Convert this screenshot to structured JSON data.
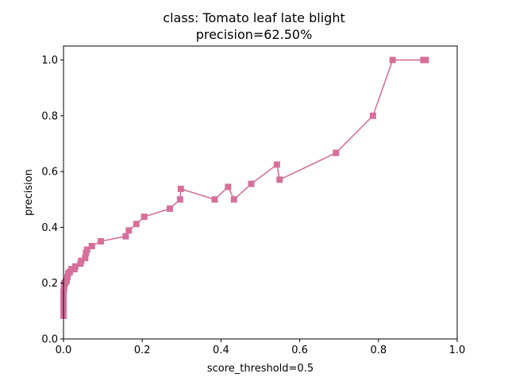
{
  "chart_data": {
    "type": "line",
    "title": "class: Tomato leaf late blight",
    "subtitle": "precision=62.50%",
    "xlabel": "score_threshold=0.5",
    "ylabel": "precision",
    "xlim": [
      0.0,
      1.0
    ],
    "ylim": [
      0.0,
      1.05
    ],
    "xticks": [
      "0.0",
      "0.2",
      "0.4",
      "0.6",
      "0.8",
      "1.0"
    ],
    "yticks": [
      "0.0",
      "0.2",
      "0.4",
      "0.6",
      "0.8",
      "1.0"
    ],
    "grid": false,
    "marker": "square",
    "color": "#d6709b",
    "series": [
      {
        "x": [
          0.0,
          0.0,
          0.0,
          0.0,
          0.0,
          0.0,
          0.0,
          0.0,
          0.0,
          0.0,
          0.0,
          0.001,
          0.001,
          0.002,
          0.002,
          0.004,
          0.006,
          0.008,
          0.01,
          0.012,
          0.016,
          0.02,
          0.028,
          0.03,
          0.043,
          0.045,
          0.055,
          0.057,
          0.06,
          0.072,
          0.095,
          0.158,
          0.166,
          0.185,
          0.205,
          0.27,
          0.296,
          0.298,
          0.384,
          0.418,
          0.433,
          0.477,
          0.542,
          0.549,
          0.692,
          0.786,
          0.836,
          0.914,
          0.917,
          0.92
        ],
        "y": [
          0.083,
          0.088,
          0.095,
          0.105,
          0.115,
          0.125,
          0.136,
          0.145,
          0.15,
          0.16,
          0.168,
          0.176,
          0.182,
          0.19,
          0.2,
          0.2,
          0.205,
          0.21,
          0.222,
          0.235,
          0.24,
          0.25,
          0.25,
          0.26,
          0.27,
          0.28,
          0.29,
          0.308,
          0.32,
          0.333,
          0.35,
          0.368,
          0.389,
          0.412,
          0.438,
          0.467,
          0.5,
          0.538,
          0.5,
          0.545,
          0.5,
          0.556,
          0.625,
          0.571,
          0.667,
          0.8,
          1.0,
          1.0,
          1.0,
          1.0
        ]
      }
    ]
  }
}
